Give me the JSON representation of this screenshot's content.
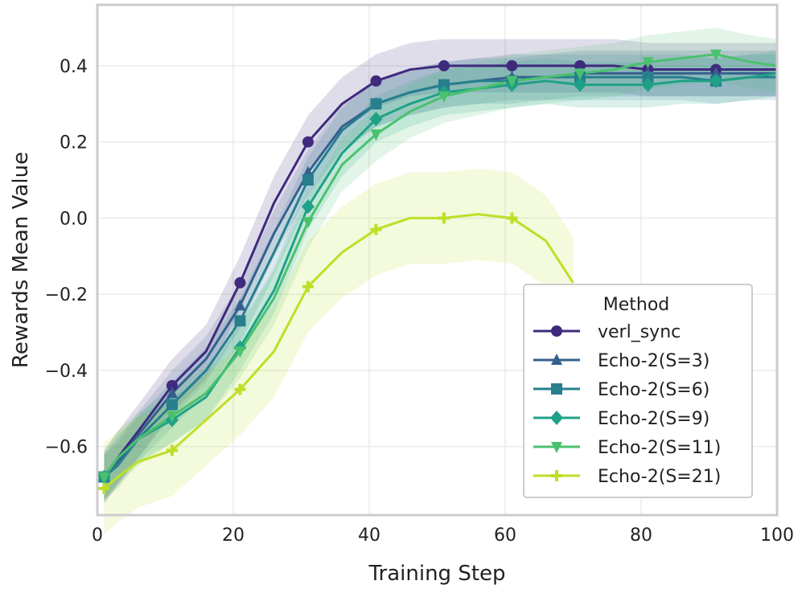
{
  "chart_data": {
    "type": "line",
    "title": "",
    "xlabel": "Training Step",
    "ylabel": "Rewards Mean Value",
    "xlim": [
      0,
      100
    ],
    "ylim": [
      -0.78,
      0.56
    ],
    "xticks": [
      0,
      20,
      40,
      60,
      80,
      100
    ],
    "yticks": [
      -0.6,
      -0.4,
      -0.2,
      0.0,
      0.2,
      0.4
    ],
    "xtick_labels": [
      "0",
      "20",
      "40",
      "60",
      "80",
      "100"
    ],
    "ytick_labels": [
      "−0.6",
      "−0.4",
      "−0.2",
      "0.0",
      "0.2",
      "0.4"
    ],
    "grid": true,
    "legend": {
      "title": "Method",
      "placement": "lower-right"
    },
    "series": [
      {
        "name": "verl_sync",
        "color": "#3f2a7e",
        "marker": "circle",
        "points": [
          [
            1,
            -0.68
          ],
          [
            3,
            -0.63
          ],
          [
            6,
            -0.56
          ],
          [
            11,
            -0.44
          ],
          [
            16,
            -0.35
          ],
          [
            21,
            -0.17
          ],
          [
            26,
            0.04
          ],
          [
            31,
            0.2
          ],
          [
            36,
            0.3
          ],
          [
            41,
            0.36
          ],
          [
            46,
            0.39
          ],
          [
            51,
            0.4
          ],
          [
            56,
            0.4
          ],
          [
            61,
            0.4
          ],
          [
            66,
            0.4
          ],
          [
            71,
            0.4
          ],
          [
            76,
            0.4
          ],
          [
            81,
            0.39
          ],
          [
            86,
            0.39
          ],
          [
            91,
            0.39
          ],
          [
            96,
            0.39
          ],
          [
            100,
            0.39
          ]
        ],
        "markers": [
          [
            1,
            -0.68
          ],
          [
            11,
            -0.44
          ],
          [
            21,
            -0.17
          ],
          [
            31,
            0.2
          ],
          [
            41,
            0.36
          ],
          [
            51,
            0.4
          ],
          [
            61,
            0.4
          ],
          [
            71,
            0.4
          ],
          [
            81,
            0.39
          ],
          [
            91,
            0.39
          ]
        ],
        "band": 0.07
      },
      {
        "name": "Echo-2(S=3)",
        "color": "#355f8d",
        "marker": "triangle-up",
        "points": [
          [
            1,
            -0.68
          ],
          [
            3,
            -0.64
          ],
          [
            6,
            -0.57
          ],
          [
            11,
            -0.46
          ],
          [
            16,
            -0.37
          ],
          [
            21,
            -0.23
          ],
          [
            26,
            -0.04
          ],
          [
            31,
            0.12
          ],
          [
            36,
            0.24
          ],
          [
            41,
            0.3
          ],
          [
            46,
            0.33
          ],
          [
            51,
            0.35
          ],
          [
            56,
            0.36
          ],
          [
            61,
            0.37
          ],
          [
            66,
            0.37
          ],
          [
            71,
            0.38
          ],
          [
            76,
            0.38
          ],
          [
            81,
            0.38
          ],
          [
            86,
            0.38
          ],
          [
            91,
            0.38
          ],
          [
            96,
            0.38
          ],
          [
            100,
            0.38
          ]
        ],
        "markers": [
          [
            1,
            -0.68
          ],
          [
            11,
            -0.46
          ],
          [
            21,
            -0.23
          ],
          [
            31,
            0.12
          ],
          [
            41,
            0.3
          ],
          [
            51,
            0.35
          ],
          [
            61,
            0.37
          ],
          [
            71,
            0.38
          ],
          [
            81,
            0.38
          ],
          [
            91,
            0.38
          ]
        ],
        "band": 0.06
      },
      {
        "name": "Echo-2(S=6)",
        "color": "#277f8e",
        "marker": "square",
        "points": [
          [
            1,
            -0.68
          ],
          [
            3,
            -0.65
          ],
          [
            6,
            -0.58
          ],
          [
            11,
            -0.49
          ],
          [
            16,
            -0.4
          ],
          [
            21,
            -0.27
          ],
          [
            26,
            -0.09
          ],
          [
            31,
            0.1
          ],
          [
            36,
            0.23
          ],
          [
            41,
            0.3
          ],
          [
            46,
            0.33
          ],
          [
            51,
            0.35
          ],
          [
            56,
            0.36
          ],
          [
            61,
            0.36
          ],
          [
            66,
            0.37
          ],
          [
            71,
            0.37
          ],
          [
            76,
            0.37
          ],
          [
            81,
            0.37
          ],
          [
            86,
            0.37
          ],
          [
            91,
            0.36
          ],
          [
            96,
            0.37
          ],
          [
            100,
            0.37
          ]
        ],
        "markers": [
          [
            1,
            -0.68
          ],
          [
            11,
            -0.49
          ],
          [
            21,
            -0.27
          ],
          [
            31,
            0.1
          ],
          [
            41,
            0.3
          ],
          [
            51,
            0.35
          ],
          [
            61,
            0.36
          ],
          [
            71,
            0.37
          ],
          [
            81,
            0.37
          ],
          [
            91,
            0.36
          ]
        ],
        "band": 0.06
      },
      {
        "name": "Echo-2(S=9)",
        "color": "#1fa187",
        "marker": "diamond",
        "points": [
          [
            1,
            -0.68
          ],
          [
            3,
            -0.63
          ],
          [
            6,
            -0.58
          ],
          [
            11,
            -0.53
          ],
          [
            16,
            -0.47
          ],
          [
            21,
            -0.34
          ],
          [
            26,
            -0.19
          ],
          [
            31,
            0.03
          ],
          [
            36,
            0.17
          ],
          [
            41,
            0.26
          ],
          [
            46,
            0.3
          ],
          [
            51,
            0.33
          ],
          [
            56,
            0.34
          ],
          [
            61,
            0.35
          ],
          [
            66,
            0.36
          ],
          [
            71,
            0.35
          ],
          [
            76,
            0.35
          ],
          [
            81,
            0.35
          ],
          [
            86,
            0.36
          ],
          [
            91,
            0.36
          ],
          [
            96,
            0.37
          ],
          [
            100,
            0.38
          ]
        ],
        "markers": [
          [
            1,
            -0.68
          ],
          [
            11,
            -0.53
          ],
          [
            21,
            -0.34
          ],
          [
            31,
            0.03
          ],
          [
            41,
            0.26
          ],
          [
            51,
            0.33
          ],
          [
            61,
            0.35
          ],
          [
            71,
            0.35
          ],
          [
            81,
            0.35
          ],
          [
            91,
            0.36
          ]
        ],
        "band": 0.06
      },
      {
        "name": "Echo-2(S=11)",
        "color": "#4ac16d",
        "marker": "triangle-down",
        "points": [
          [
            1,
            -0.68
          ],
          [
            3,
            -0.63
          ],
          [
            6,
            -0.58
          ],
          [
            11,
            -0.52
          ],
          [
            16,
            -0.46
          ],
          [
            21,
            -0.35
          ],
          [
            26,
            -0.21
          ],
          [
            31,
            -0.01
          ],
          [
            36,
            0.14
          ],
          [
            41,
            0.22
          ],
          [
            46,
            0.28
          ],
          [
            51,
            0.32
          ],
          [
            56,
            0.34
          ],
          [
            61,
            0.36
          ],
          [
            66,
            0.37
          ],
          [
            71,
            0.38
          ],
          [
            76,
            0.39
          ],
          [
            81,
            0.41
          ],
          [
            86,
            0.42
          ],
          [
            91,
            0.43
          ],
          [
            96,
            0.41
          ],
          [
            100,
            0.4
          ]
        ],
        "markers": [
          [
            1,
            -0.68
          ],
          [
            11,
            -0.52
          ],
          [
            21,
            -0.35
          ],
          [
            31,
            -0.01
          ],
          [
            41,
            0.22
          ],
          [
            51,
            0.32
          ],
          [
            61,
            0.36
          ],
          [
            71,
            0.38
          ],
          [
            81,
            0.41
          ],
          [
            91,
            0.43
          ]
        ],
        "band": 0.07
      },
      {
        "name": "Echo-2(S=21)",
        "color": "#bddf26",
        "marker": "plus",
        "points": [
          [
            1,
            -0.71
          ],
          [
            3,
            -0.68
          ],
          [
            6,
            -0.64
          ],
          [
            11,
            -0.61
          ],
          [
            16,
            -0.53
          ],
          [
            21,
            -0.45
          ],
          [
            26,
            -0.35
          ],
          [
            31,
            -0.18
          ],
          [
            36,
            -0.09
          ],
          [
            41,
            -0.03
          ],
          [
            46,
            0.0
          ],
          [
            51,
            0.0
          ],
          [
            56,
            0.01
          ],
          [
            61,
            0.0
          ],
          [
            66,
            -0.06
          ],
          [
            70,
            -0.17
          ]
        ],
        "markers": [
          [
            1,
            -0.71
          ],
          [
            11,
            -0.61
          ],
          [
            21,
            -0.45
          ],
          [
            31,
            -0.18
          ],
          [
            41,
            -0.03
          ],
          [
            51,
            0.0
          ],
          [
            61,
            0.0
          ]
        ],
        "band": 0.12
      }
    ]
  }
}
